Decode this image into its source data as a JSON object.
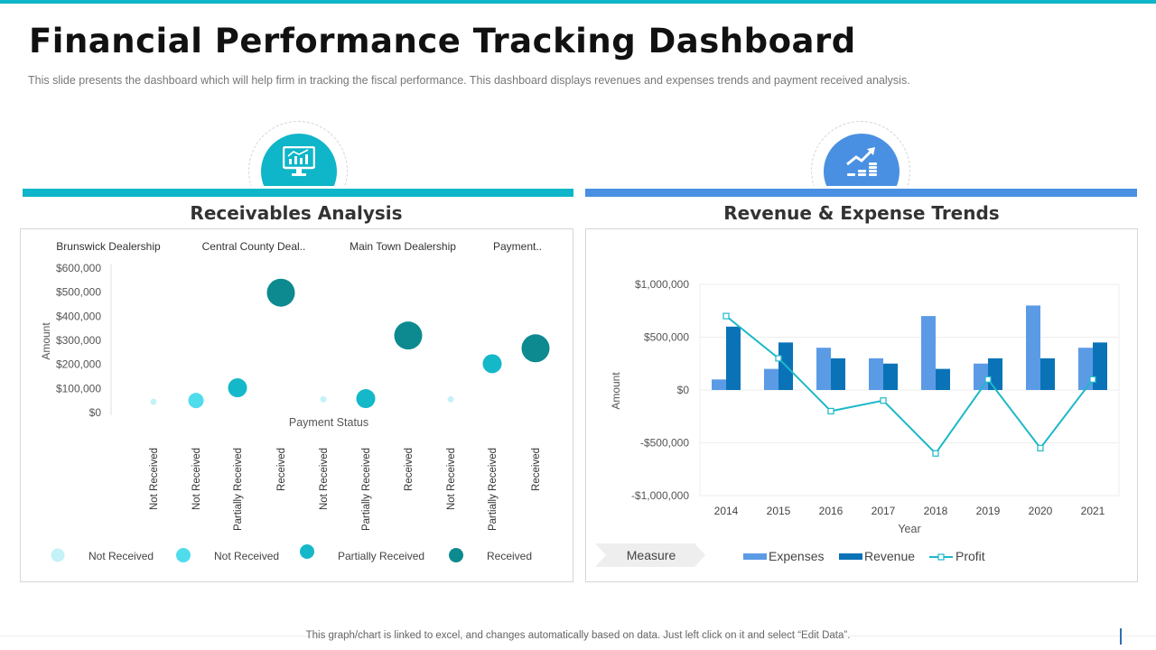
{
  "header": {
    "title": "Financial Performance Tracking Dashboard",
    "subtitle": "This slide presents the dashboard which will help firm in tracking the fiscal performance.  This dashboard displays revenues  and expenses trends and payment received analysis."
  },
  "icons": {
    "left_badge": "monitor-chart-icon",
    "right_badge": "growth-coins-icon"
  },
  "colors": {
    "accent_teal": "#0fb5c8",
    "accent_blue": "#4a90e2",
    "expenses": "#5b9be6",
    "revenue": "#0a73b8",
    "profit": "#1cb8c8"
  },
  "left_panel": {
    "title": "Receivables Analysis"
  },
  "right_panel": {
    "title": "Revenue & Expense Trends"
  },
  "footer": {
    "note": "This graph/chart is linked to excel,  and changes automatically based on data. Just left click on it and select “Edit Data”."
  },
  "chart_data": [
    {
      "type": "scatter",
      "title": "Receivables Analysis",
      "ylabel": "Amount",
      "xlabel": "Payment Status",
      "ylim": [
        0,
        600000
      ],
      "yticks": [
        "$0",
        "$100,000",
        "$200,000",
        "$300,000",
        "$400,000",
        "$500,000",
        "$600,000"
      ],
      "groups": [
        "Brunswick Dealership",
        "Central County Deal..",
        "Main Town Dealership",
        "Payment.."
      ],
      "points": [
        {
          "group": 0,
          "status": "Not Received",
          "value": 45000,
          "size": 1
        },
        {
          "group": 0,
          "status": "Not Received",
          "value": 50000,
          "size": 2
        },
        {
          "group": 0,
          "status": "Partially Received",
          "value": 103000,
          "size": 3
        },
        {
          "group": 1,
          "status": "Received",
          "value": 498000,
          "size": 4
        },
        {
          "group": 1,
          "status": "Not Received",
          "value": 55000,
          "size": 1
        },
        {
          "group": 1,
          "status": "Partially Received",
          "value": 58000,
          "size": 3
        },
        {
          "group": 2,
          "status": "Received",
          "value": 320000,
          "size": 4
        },
        {
          "group": 2,
          "status": "Not Received",
          "value": 55000,
          "size": 1
        },
        {
          "group": 2,
          "status": "Partially Received",
          "value": 203000,
          "size": 3
        },
        {
          "group": 3,
          "status": "Received",
          "value": 267000,
          "size": 4
        }
      ],
      "legend": [
        "Not Received",
        "Not Received",
        "Partially Received",
        "Received"
      ],
      "legend_colors": [
        "#c4f2f7",
        "#4fdcec",
        "#14b8c9",
        "#0c8a8f"
      ],
      "legend_position": "bottom"
    },
    {
      "type": "bar",
      "title": "Revenue & Expense Trends",
      "xlabel": "Year",
      "ylabel": "Amount",
      "ylim": [
        -1000000,
        1000000
      ],
      "yticks": [
        "-$1,000,000",
        "-$500,000",
        "$0",
        "$500,000",
        "$1,000,000"
      ],
      "categories": [
        "2014",
        "2015",
        "2016",
        "2017",
        "2018",
        "2019",
        "2020",
        "2021"
      ],
      "series": [
        {
          "name": "Expenses",
          "type": "bar",
          "values": [
            100000,
            200000,
            400000,
            300000,
            700000,
            250000,
            800000,
            400000
          ]
        },
        {
          "name": "Revenue",
          "type": "bar",
          "values": [
            600000,
            450000,
            300000,
            250000,
            200000,
            300000,
            300000,
            450000
          ]
        },
        {
          "name": "Profit",
          "type": "line",
          "values": [
            700000,
            300000,
            -200000,
            -100000,
            -600000,
            100000,
            -550000,
            100000
          ]
        }
      ],
      "measure_label": "Measure",
      "legend_position": "bottom",
      "grid": true
    }
  ]
}
